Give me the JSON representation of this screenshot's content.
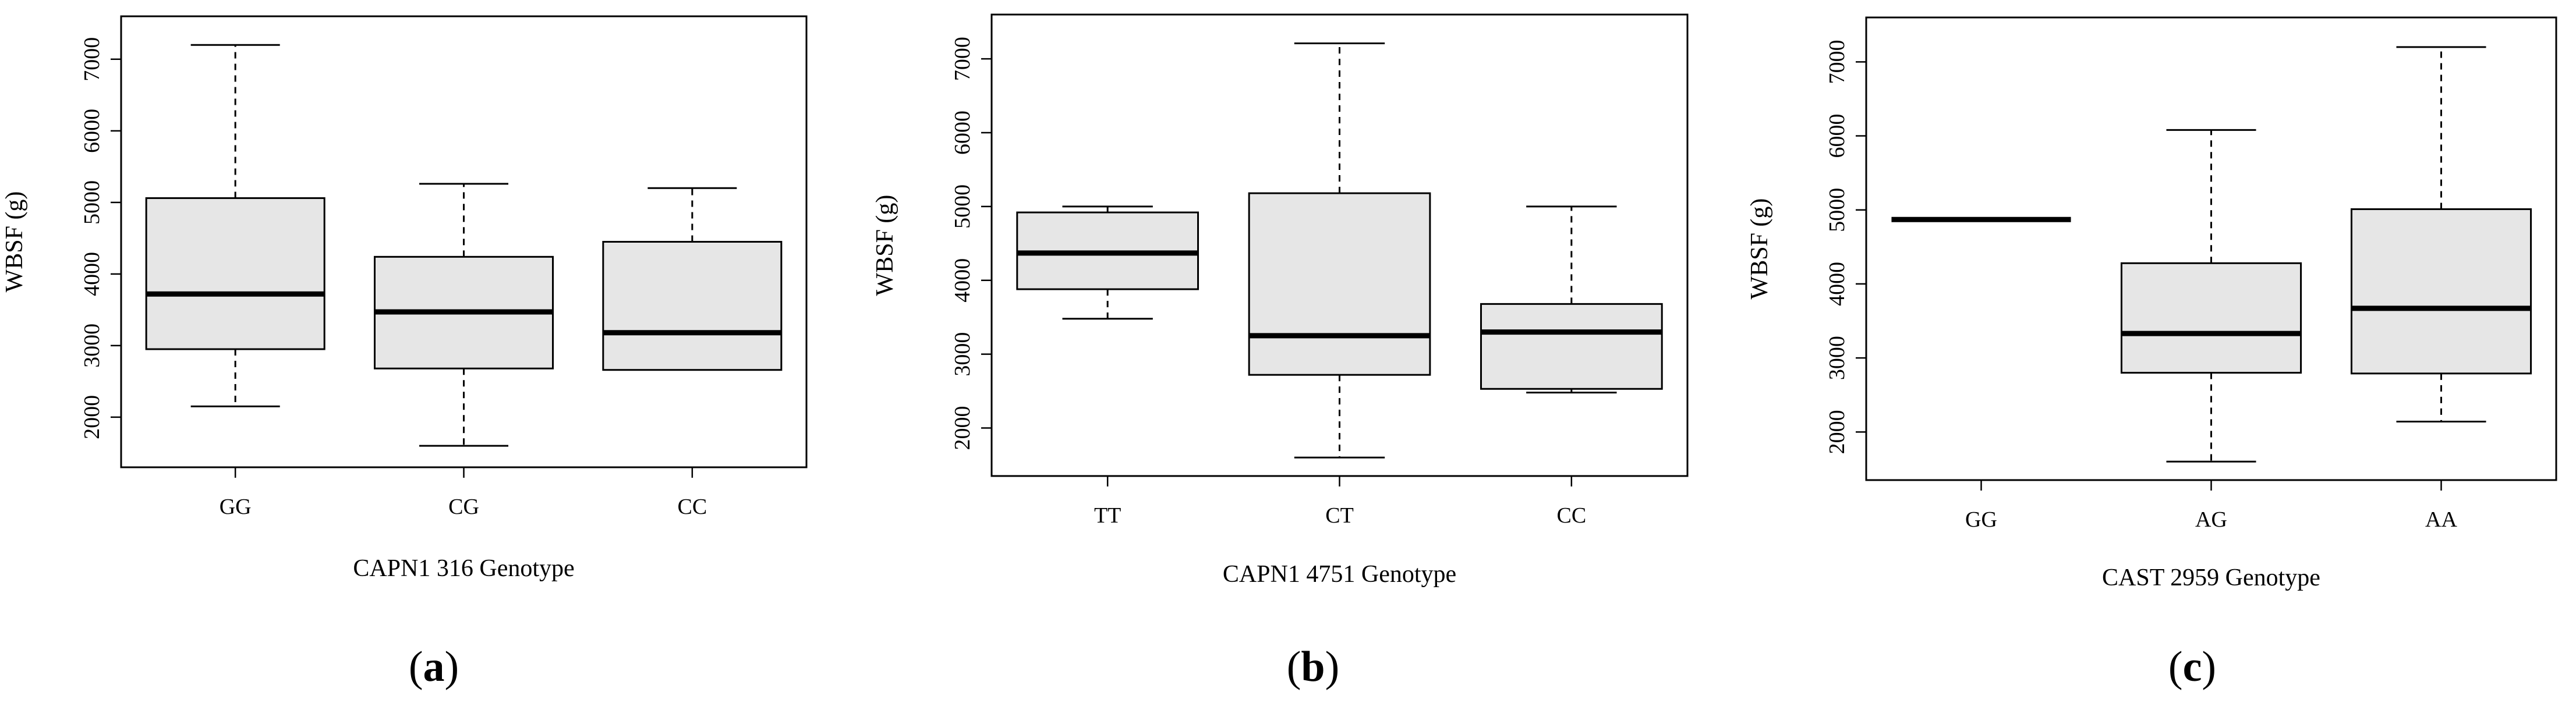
{
  "chart_data": [
    {
      "type": "boxplot",
      "panel_label": "a",
      "xlabel": "CAPN1 316 Genotype",
      "ylabel": "WBSF (g)",
      "ylim": [
        1300,
        7600
      ],
      "yticks": [
        2000,
        3000,
        4000,
        5000,
        6000,
        7000
      ],
      "categories": [
        "GG",
        "CG",
        "CC"
      ],
      "box_fill": "#e6e6e6",
      "boxes": [
        {
          "label": "GG",
          "min": 2150,
          "q1": 2950,
          "median": 3720,
          "q3": 5060,
          "max": 7200
        },
        {
          "label": "CG",
          "min": 1600,
          "q1": 2680,
          "median": 3470,
          "q3": 4240,
          "max": 5260
        },
        {
          "label": "CC",
          "min": 2660,
          "q1": 2660,
          "median": 3180,
          "q3": 4450,
          "max": 5200
        }
      ]
    },
    {
      "type": "boxplot",
      "panel_label": "b",
      "xlabel": "CAPN1 4751 Genotype",
      "ylabel": "WBSF (g)",
      "ylim": [
        1350,
        7600
      ],
      "yticks": [
        2000,
        3000,
        4000,
        5000,
        6000,
        7000
      ],
      "categories": [
        "TT",
        "CT",
        "CC"
      ],
      "box_fill": "#e6e6e6",
      "boxes": [
        {
          "label": "TT",
          "min": 3480,
          "q1": 3880,
          "median": 4370,
          "q3": 4920,
          "max": 5000
        },
        {
          "label": "CT",
          "min": 1600,
          "q1": 2720,
          "median": 3250,
          "q3": 5180,
          "max": 7210
        },
        {
          "label": "CC",
          "min": 2480,
          "q1": 2530,
          "median": 3300,
          "q3": 3680,
          "max": 5000
        }
      ]
    },
    {
      "type": "boxplot",
      "panel_label": "c",
      "xlabel": "CAST 2959 Genotype",
      "ylabel": "WBSF (g)",
      "ylim": [
        1350,
        7600
      ],
      "yticks": [
        2000,
        3000,
        4000,
        5000,
        6000,
        7000
      ],
      "categories": [
        "GG",
        "AG",
        "AA"
      ],
      "box_fill": "#e6e6e6",
      "boxes": [
        {
          "label": "GG",
          "min": 4870,
          "q1": 4870,
          "median": 4870,
          "q3": 4870,
          "max": 4870
        },
        {
          "label": "AG",
          "min": 1600,
          "q1": 2800,
          "median": 3330,
          "q3": 4280,
          "max": 6080
        },
        {
          "label": "AA",
          "min": 2140,
          "q1": 2790,
          "median": 3670,
          "q3": 5010,
          "max": 7200
        }
      ]
    }
  ]
}
